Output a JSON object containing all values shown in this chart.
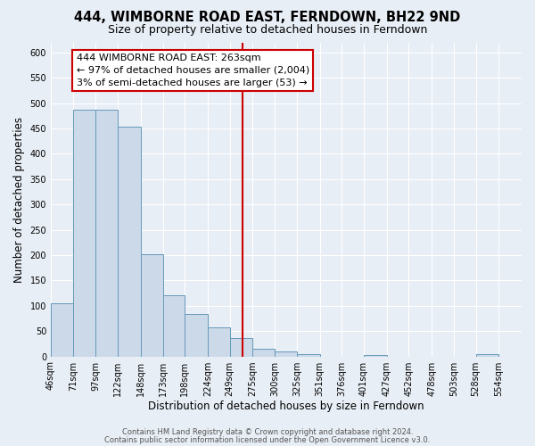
{
  "title": "444, WIMBORNE ROAD EAST, FERNDOWN, BH22 9ND",
  "subtitle": "Size of property relative to detached houses in Ferndown",
  "xlabel": "Distribution of detached houses by size in Ferndown",
  "ylabel": "Number of detached properties",
  "bin_labels": [
    "46sqm",
    "71sqm",
    "97sqm",
    "122sqm",
    "148sqm",
    "173sqm",
    "198sqm",
    "224sqm",
    "249sqm",
    "275sqm",
    "300sqm",
    "325sqm",
    "351sqm",
    "376sqm",
    "401sqm",
    "427sqm",
    "452sqm",
    "478sqm",
    "503sqm",
    "528sqm",
    "554sqm"
  ],
  "bar_values": [
    105,
    487,
    487,
    453,
    202,
    121,
    83,
    57,
    37,
    15,
    10,
    5,
    0,
    0,
    3,
    0,
    0,
    0,
    0,
    4,
    0
  ],
  "bar_color": "#ccd9e8",
  "bar_edge_color": "#6699bb",
  "property_line_x": 263,
  "bin_edges": [
    46,
    71,
    97,
    122,
    148,
    173,
    198,
    224,
    249,
    275,
    300,
    325,
    351,
    376,
    401,
    427,
    452,
    478,
    503,
    528,
    554,
    580
  ],
  "annotation_text": "444 WIMBORNE ROAD EAST: 263sqm\n← 97% of detached houses are smaller (2,004)\n3% of semi-detached houses are larger (53) →",
  "annotation_box_color": "#ffffff",
  "annotation_box_edge": "#cc0000",
  "vline_color": "#cc0000",
  "footer_line1": "Contains HM Land Registry data © Crown copyright and database right 2024.",
  "footer_line2": "Contains public sector information licensed under the Open Government Licence v3.0.",
  "ylim": [
    0,
    620
  ],
  "yticks": [
    0,
    50,
    100,
    150,
    200,
    250,
    300,
    350,
    400,
    450,
    500,
    550,
    600
  ],
  "bg_color": "#e8eef5",
  "plot_bg_color": "#e8eef5",
  "grid_color": "#ffffff",
  "title_fontsize": 10.5,
  "subtitle_fontsize": 9,
  "axis_label_fontsize": 8.5,
  "tick_fontsize": 7,
  "annotation_fontsize": 8,
  "footer_fontsize": 6
}
